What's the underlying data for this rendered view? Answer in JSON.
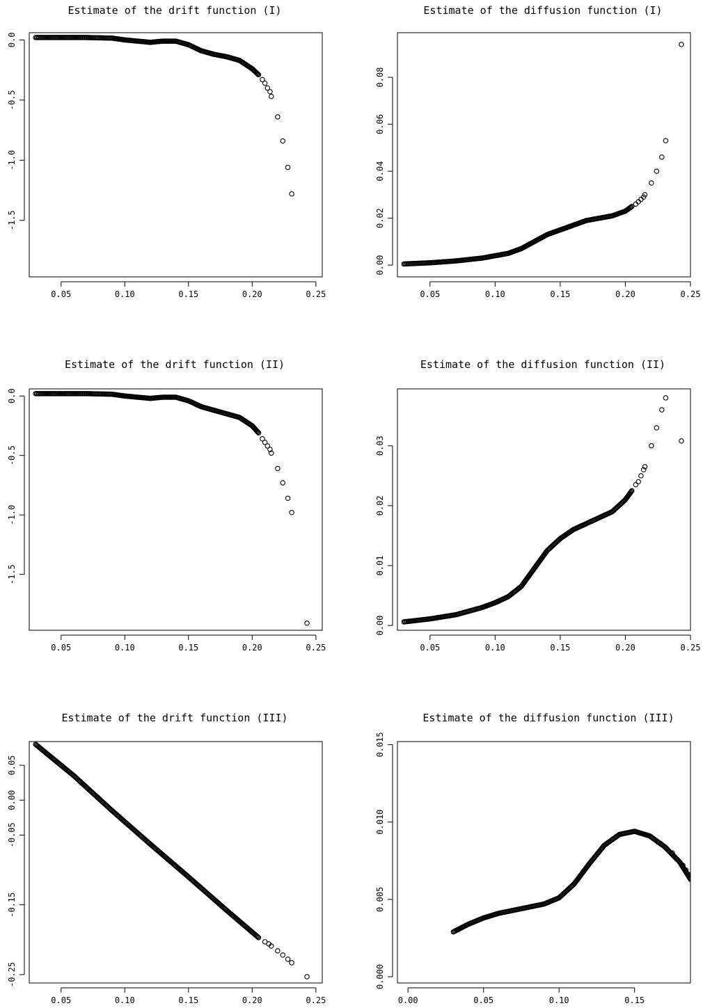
{
  "chart_data": [
    {
      "type": "scatter",
      "title": "Estimate of the drift function (I)",
      "xlabel": "",
      "ylabel": "",
      "xlim": [
        0.025,
        0.255
      ],
      "ylim": [
        -1.97,
        0.06
      ],
      "xticks": [
        0.05,
        0.1,
        0.15,
        0.2,
        0.25
      ],
      "xtick_labels": [
        "0.05",
        "0.10",
        "0.15",
        "0.20",
        "0.25"
      ],
      "yticks": [
        0.0,
        -0.5,
        -1.0,
        -1.5
      ],
      "ytick_labels": [
        "0.0",
        "-0.5",
        "-1.0",
        "-1.5"
      ],
      "curve_points": [
        [
          0.03,
          0.02
        ],
        [
          0.05,
          0.02
        ],
        [
          0.07,
          0.02
        ],
        [
          0.09,
          0.015
        ],
        [
          0.1,
          0.0
        ],
        [
          0.11,
          -0.01
        ],
        [
          0.12,
          -0.02
        ],
        [
          0.13,
          -0.01
        ],
        [
          0.14,
          -0.01
        ],
        [
          0.15,
          -0.04
        ],
        [
          0.16,
          -0.09
        ],
        [
          0.17,
          -0.12
        ],
        [
          0.18,
          -0.14
        ],
        [
          0.19,
          -0.17
        ],
        [
          0.2,
          -0.24
        ],
        [
          0.205,
          -0.29
        ]
      ],
      "sparse_points": [
        [
          0.208,
          -0.33
        ],
        [
          0.21,
          -0.36
        ],
        [
          0.212,
          -0.4
        ],
        [
          0.214,
          -0.43
        ],
        [
          0.215,
          -0.47
        ],
        [
          0.22,
          -0.64
        ],
        [
          0.224,
          -0.84
        ],
        [
          0.228,
          -1.06
        ],
        [
          0.231,
          -1.28
        ]
      ]
    },
    {
      "type": "scatter",
      "title": "Estimate of the diffusion function (I)",
      "xlabel": "",
      "ylabel": "",
      "xlim": [
        0.025,
        0.25
      ],
      "ylim": [
        -0.005,
        0.099
      ],
      "xticks": [
        0.05,
        0.1,
        0.15,
        0.2,
        0.25
      ],
      "xtick_labels": [
        "0.05",
        "0.10",
        "0.15",
        "0.20",
        "0.25"
      ],
      "yticks": [
        0.0,
        0.02,
        0.04,
        0.06,
        0.08
      ],
      "ytick_labels": [
        "0.00",
        "0.02",
        "0.04",
        "0.06",
        "0.08"
      ],
      "curve_points": [
        [
          0.03,
          0.0005
        ],
        [
          0.05,
          0.001
        ],
        [
          0.07,
          0.0018
        ],
        [
          0.09,
          0.003
        ],
        [
          0.1,
          0.004
        ],
        [
          0.11,
          0.005
        ],
        [
          0.12,
          0.007
        ],
        [
          0.13,
          0.01
        ],
        [
          0.14,
          0.013
        ],
        [
          0.15,
          0.015
        ],
        [
          0.16,
          0.017
        ],
        [
          0.17,
          0.019
        ],
        [
          0.18,
          0.02
        ],
        [
          0.19,
          0.021
        ],
        [
          0.2,
          0.023
        ],
        [
          0.205,
          0.025
        ]
      ],
      "sparse_points": [
        [
          0.208,
          0.026
        ],
        [
          0.21,
          0.027
        ],
        [
          0.212,
          0.028
        ],
        [
          0.214,
          0.029
        ],
        [
          0.215,
          0.03
        ],
        [
          0.22,
          0.035
        ],
        [
          0.224,
          0.04
        ],
        [
          0.228,
          0.046
        ],
        [
          0.231,
          0.053
        ],
        [
          0.243,
          0.094
        ]
      ]
    },
    {
      "type": "scatter",
      "title": "Estimate of the drift function (II)",
      "xlabel": "",
      "ylabel": "",
      "xlim": [
        0.025,
        0.255
      ],
      "ylim": [
        -1.97,
        0.06
      ],
      "xticks": [
        0.05,
        0.1,
        0.15,
        0.2,
        0.25
      ],
      "xtick_labels": [
        "0.05",
        "0.10",
        "0.15",
        "0.20",
        "0.25"
      ],
      "yticks": [
        0.0,
        -0.5,
        -1.0,
        -1.5
      ],
      "ytick_labels": [
        "0.0",
        "-0.5",
        "-1.0",
        "-1.5"
      ],
      "curve_points": [
        [
          0.03,
          0.02
        ],
        [
          0.05,
          0.02
        ],
        [
          0.07,
          0.02
        ],
        [
          0.09,
          0.015
        ],
        [
          0.1,
          0.0
        ],
        [
          0.11,
          -0.01
        ],
        [
          0.12,
          -0.02
        ],
        [
          0.13,
          -0.01
        ],
        [
          0.14,
          -0.01
        ],
        [
          0.15,
          -0.04
        ],
        [
          0.16,
          -0.09
        ],
        [
          0.17,
          -0.12
        ],
        [
          0.18,
          -0.15
        ],
        [
          0.19,
          -0.18
        ],
        [
          0.2,
          -0.25
        ],
        [
          0.205,
          -0.31
        ]
      ],
      "sparse_points": [
        [
          0.208,
          -0.36
        ],
        [
          0.21,
          -0.39
        ],
        [
          0.212,
          -0.42
        ],
        [
          0.214,
          -0.45
        ],
        [
          0.215,
          -0.48
        ],
        [
          0.22,
          -0.61
        ],
        [
          0.224,
          -0.73
        ],
        [
          0.228,
          -0.86
        ],
        [
          0.231,
          -0.98
        ],
        [
          0.243,
          -1.91
        ]
      ]
    },
    {
      "type": "scatter",
      "title": "Estimate of the diffusion function (II)",
      "xlabel": "",
      "ylabel": "",
      "xlim": [
        0.025,
        0.25
      ],
      "ylim": [
        -0.0008,
        0.0395
      ],
      "xticks": [
        0.05,
        0.1,
        0.15,
        0.2,
        0.25
      ],
      "xtick_labels": [
        "0.05",
        "0.10",
        "0.15",
        "0.20",
        "0.25"
      ],
      "yticks": [
        0.0,
        0.01,
        0.02,
        0.03
      ],
      "ytick_labels": [
        "0.00",
        "0.01",
        "0.02",
        "0.03"
      ],
      "curve_points": [
        [
          0.03,
          0.0006
        ],
        [
          0.05,
          0.0011
        ],
        [
          0.07,
          0.0018
        ],
        [
          0.09,
          0.003
        ],
        [
          0.1,
          0.0038
        ],
        [
          0.11,
          0.0048
        ],
        [
          0.12,
          0.0065
        ],
        [
          0.13,
          0.0095
        ],
        [
          0.14,
          0.0125
        ],
        [
          0.15,
          0.0145
        ],
        [
          0.16,
          0.016
        ],
        [
          0.17,
          0.017
        ],
        [
          0.18,
          0.018
        ],
        [
          0.19,
          0.019
        ],
        [
          0.2,
          0.021
        ],
        [
          0.205,
          0.0225
        ]
      ],
      "sparse_points": [
        [
          0.208,
          0.0235
        ],
        [
          0.21,
          0.024
        ],
        [
          0.212,
          0.025
        ],
        [
          0.214,
          0.026
        ],
        [
          0.215,
          0.0265
        ],
        [
          0.22,
          0.03
        ],
        [
          0.224,
          0.033
        ],
        [
          0.228,
          0.036
        ],
        [
          0.231,
          0.038
        ],
        [
          0.243,
          0.0308
        ]
      ]
    },
    {
      "type": "scatter",
      "title": "Estimate of the drift function (III)",
      "xlabel": "",
      "ylabel": "",
      "xlim": [
        0.025,
        0.255
      ],
      "ylim": [
        -0.262,
        0.084
      ],
      "xticks": [
        0.05,
        0.1,
        0.15,
        0.2,
        0.25
      ],
      "xtick_labels": [
        "0.05",
        "0.10",
        "0.15",
        "0.20",
        "0.25"
      ],
      "yticks": [
        0.05,
        0.0,
        -0.05,
        -0.15,
        -0.25
      ],
      "ytick_labels": [
        "0.05",
        "0.00",
        "-0.05",
        "-0.15",
        "-0.25"
      ],
      "curve_points": [
        [
          0.03,
          0.08
        ],
        [
          0.06,
          0.035
        ],
        [
          0.09,
          -0.015
        ],
        [
          0.12,
          -0.063
        ],
        [
          0.15,
          -0.11
        ],
        [
          0.18,
          -0.158
        ],
        [
          0.205,
          -0.197
        ]
      ],
      "sparse_points": [
        [
          0.21,
          -0.203
        ],
        [
          0.213,
          -0.206
        ],
        [
          0.215,
          -0.209
        ],
        [
          0.22,
          -0.216
        ],
        [
          0.224,
          -0.222
        ],
        [
          0.228,
          -0.228
        ],
        [
          0.231,
          -0.233
        ],
        [
          0.243,
          -0.253
        ]
      ]
    },
    {
      "type": "scatter",
      "title": "Estimate of the diffusion function (III)",
      "xlabel": "",
      "ylabel": "",
      "xlim": [
        -0.007,
        0.187
      ],
      "ylim": [
        -0.0004,
        0.0152
      ],
      "xticks": [
        0.0,
        0.05,
        0.1,
        0.15
      ],
      "xtick_labels": [
        "0.00",
        "0.05",
        "0.10",
        "0.15"
      ],
      "yticks": [
        0.0,
        0.005,
        0.01,
        0.015
      ],
      "ytick_labels": [
        "0.000",
        "0.005",
        "0.010",
        "0.015"
      ],
      "curve_points": [
        [
          0.03,
          0.0029
        ],
        [
          0.04,
          0.0034
        ],
        [
          0.05,
          0.0038
        ],
        [
          0.06,
          0.0041
        ],
        [
          0.07,
          0.0043
        ],
        [
          0.08,
          0.0045
        ],
        [
          0.09,
          0.0047
        ],
        [
          0.1,
          0.0051
        ],
        [
          0.11,
          0.006
        ],
        [
          0.12,
          0.0073
        ],
        [
          0.13,
          0.0085
        ],
        [
          0.14,
          0.0092
        ],
        [
          0.15,
          0.0094
        ],
        [
          0.16,
          0.0091
        ],
        [
          0.17,
          0.0084
        ],
        [
          0.18,
          0.0074
        ],
        [
          0.187,
          0.0063
        ]
      ],
      "sparse_points": [
        [
          0.171,
          0.0083
        ],
        [
          0.175,
          0.008
        ],
        [
          0.178,
          0.0076
        ],
        [
          0.182,
          0.0072
        ],
        [
          0.184,
          0.0069
        ],
        [
          0.186,
          0.0066
        ]
      ]
    }
  ]
}
